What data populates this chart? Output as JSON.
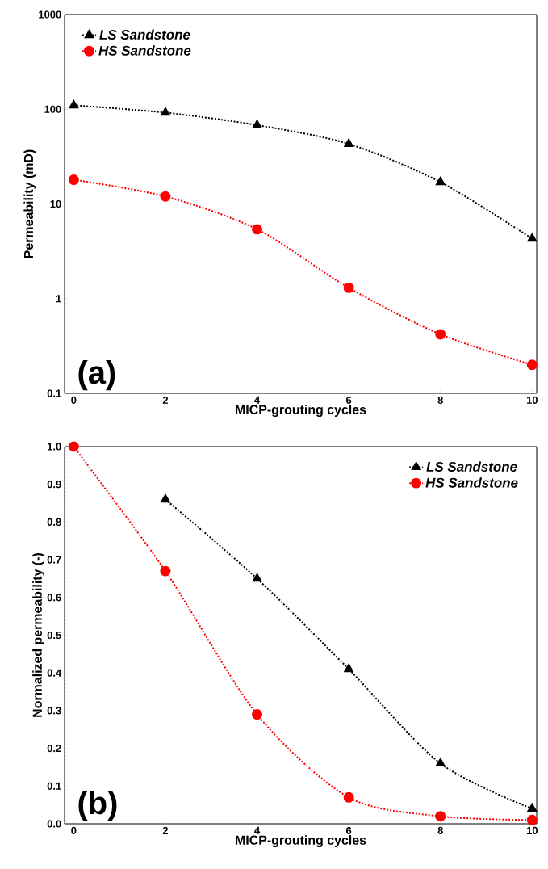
{
  "chart_data": [
    {
      "type": "line",
      "x": [
        0,
        2,
        4,
        6,
        8,
        10
      ],
      "xlabel": "MICP-grouting cycles",
      "ylabel": "Permeability (mD)",
      "log": "y",
      "xlim": [
        -0.2,
        10.1
      ],
      "ylim": [
        0.1,
        1000
      ],
      "xticks": [
        0,
        2,
        4,
        6,
        8,
        10
      ],
      "yticks": [
        0.1,
        1,
        10,
        100,
        1000
      ],
      "legend": "top left",
      "line_style": "dotted",
      "annotations": [
        "(a)"
      ],
      "series": [
        {
          "name": "LS Sandstone",
          "color": "#000000",
          "marker": "triangle",
          "values": [
            110,
            92,
            68,
            43,
            17,
            4.3
          ]
        },
        {
          "name": "HS Sandstone",
          "color": "#ff0000",
          "marker": "circle",
          "values": [
            18,
            12,
            5.4,
            1.3,
            0.42,
            0.2
          ]
        }
      ]
    },
    {
      "type": "line",
      "x": [
        0,
        2,
        4,
        6,
        8,
        10
      ],
      "xlabel": "MICP-grouting cycles",
      "ylabel": "Normalized permeability (-)",
      "xlim": [
        -0.2,
        10.1
      ],
      "ylim": [
        0,
        1.0
      ],
      "xticks": [
        0,
        2,
        4,
        6,
        8,
        10
      ],
      "yticks": [
        {
          "value": 0,
          "label": "0.0"
        },
        0.1,
        0.2,
        0.3,
        0.4,
        0.5,
        0.6,
        0.7,
        0.8,
        0.9,
        {
          "value": 1.0,
          "label": "1.0"
        }
      ],
      "legend": "top right",
      "line_style": "dotted",
      "annotations": [
        "(b)"
      ],
      "series": [
        {
          "name": "LS Sandstone",
          "color": "#000000",
          "marker": "triangle",
          "values": [
            null,
            0.86,
            0.65,
            0.41,
            0.16,
            0.04
          ]
        },
        {
          "name": "HS Sandstone",
          "color": "#ff0000",
          "marker": "circle",
          "values": [
            1.0,
            0.67,
            0.29,
            0.07,
            0.02,
            0.01
          ]
        }
      ]
    }
  ]
}
